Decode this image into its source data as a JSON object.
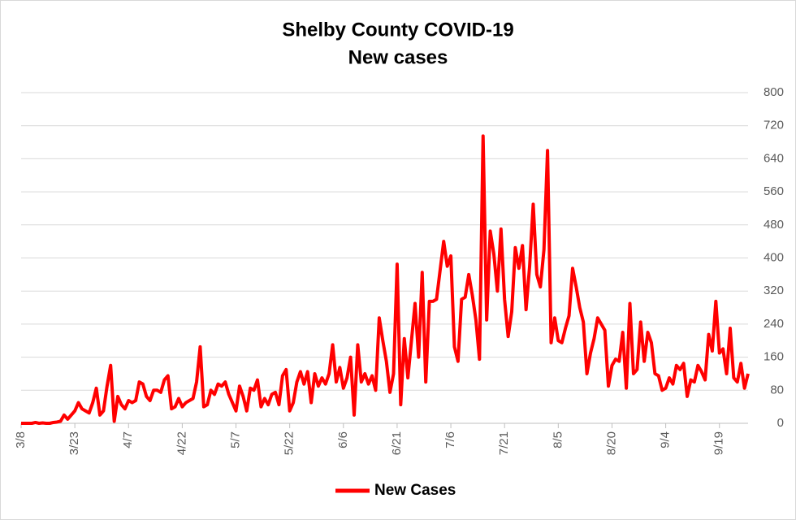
{
  "chart_data": {
    "type": "line",
    "title": "Shelby County COVID-19",
    "subtitle": "New cases",
    "categories": [
      "3/8",
      null,
      null,
      null,
      null,
      null,
      null,
      null,
      null,
      null,
      null,
      null,
      null,
      null,
      null,
      "3/23",
      null,
      null,
      null,
      null,
      null,
      null,
      null,
      null,
      null,
      null,
      null,
      null,
      null,
      null,
      "4/7",
      null,
      null,
      null,
      null,
      null,
      null,
      null,
      null,
      null,
      null,
      null,
      null,
      null,
      null,
      "4/22",
      null,
      null,
      null,
      null,
      null,
      null,
      null,
      null,
      null,
      null,
      null,
      null,
      null,
      null,
      "5/7",
      null,
      null,
      null,
      null,
      null,
      null,
      null,
      null,
      null,
      null,
      null,
      null,
      null,
      null,
      "5/22",
      null,
      null,
      null,
      null,
      null,
      null,
      null,
      null,
      null,
      null,
      null,
      null,
      null,
      null,
      "6/6",
      null,
      null,
      null,
      null,
      null,
      null,
      null,
      null,
      null,
      null,
      null,
      null,
      null,
      null,
      "6/21",
      null,
      null,
      null,
      null,
      null,
      null,
      null,
      null,
      null,
      null,
      null,
      null,
      null,
      null,
      "7/6",
      null,
      null,
      null,
      null,
      null,
      null,
      null,
      null,
      null,
      null,
      null,
      null,
      null,
      null,
      "7/21",
      null,
      null,
      null,
      null,
      null,
      null,
      null,
      null,
      null,
      null,
      null,
      null,
      null,
      null,
      "8/5",
      null,
      null,
      null,
      null,
      null,
      null,
      null,
      null,
      null,
      null,
      null,
      null,
      null,
      null,
      "8/20",
      null,
      null,
      null,
      null,
      null,
      null,
      null,
      null,
      null,
      null,
      null,
      null,
      null,
      null,
      "9/4",
      null,
      null,
      null,
      null,
      null,
      null,
      null,
      null,
      null,
      null,
      null,
      null,
      null,
      null,
      "9/19",
      null,
      null,
      null,
      null,
      null,
      null,
      null,
      null
    ],
    "series": [
      {
        "name": "New Cases",
        "color": "#ff0000",
        "values": [
          0,
          0,
          0,
          0,
          2,
          0,
          1,
          0,
          0,
          2,
          3,
          5,
          20,
          10,
          20,
          30,
          50,
          35,
          30,
          25,
          50,
          85,
          20,
          30,
          90,
          140,
          5,
          65,
          45,
          35,
          55,
          50,
          55,
          100,
          95,
          65,
          55,
          80,
          80,
          75,
          105,
          115,
          35,
          40,
          60,
          40,
          50,
          55,
          60,
          100,
          185,
          40,
          45,
          80,
          70,
          95,
          90,
          100,
          70,
          50,
          30,
          90,
          65,
          30,
          85,
          80,
          105,
          40,
          60,
          45,
          70,
          75,
          45,
          115,
          130,
          30,
          50,
          100,
          125,
          95,
          125,
          50,
          120,
          90,
          110,
          95,
          120,
          190,
          100,
          135,
          85,
          110,
          160,
          20,
          190,
          100,
          120,
          95,
          115,
          80,
          255,
          200,
          150,
          75,
          120,
          385,
          45,
          205,
          110,
          200,
          290,
          160,
          365,
          100,
          295,
          295,
          300,
          370,
          440,
          380,
          405,
          185,
          150,
          300,
          305,
          360,
          310,
          250,
          155,
          695,
          250,
          465,
          410,
          320,
          470,
          300,
          210,
          270,
          425,
          375,
          430,
          275,
          380,
          530,
          360,
          330,
          420,
          660,
          195,
          255,
          200,
          195,
          230,
          260,
          375,
          330,
          280,
          245,
          120,
          170,
          205,
          255,
          240,
          225,
          90,
          140,
          155,
          150,
          220,
          85,
          290,
          120,
          130,
          245,
          150,
          220,
          195,
          120,
          115,
          80,
          85,
          110,
          95,
          140,
          130,
          145,
          65,
          105,
          100,
          140,
          125,
          105,
          215,
          175,
          295,
          170,
          180,
          120,
          230,
          110,
          100,
          145,
          85,
          120
        ]
      }
    ],
    "ylim": [
      0,
      800
    ],
    "yticks": [
      0,
      80,
      160,
      240,
      320,
      400,
      480,
      560,
      640,
      720,
      800
    ],
    "grid": true,
    "legend": "bottom"
  }
}
